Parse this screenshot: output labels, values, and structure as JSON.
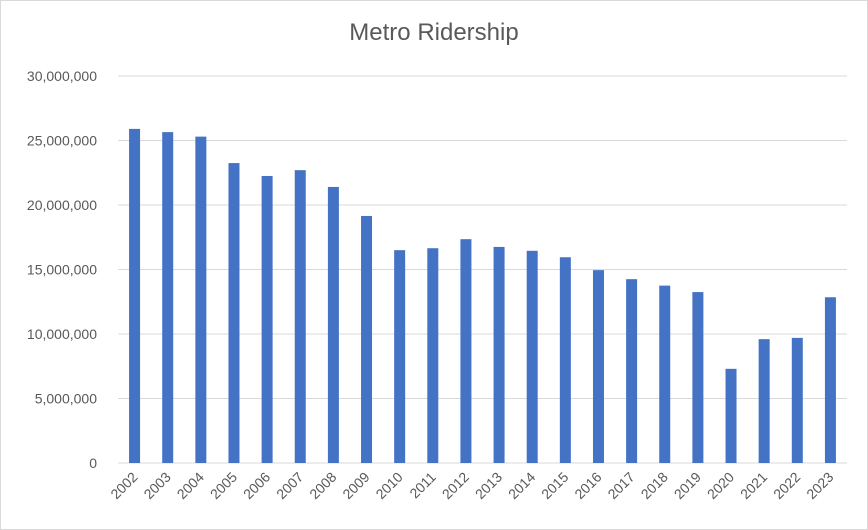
{
  "chart_data": {
    "type": "bar",
    "title": "Metro Ridership",
    "xlabel": "",
    "ylabel": "",
    "ylim": [
      0,
      30000000
    ],
    "yticks": [
      0,
      5000000,
      10000000,
      15000000,
      20000000,
      25000000,
      30000000
    ],
    "ytick_labels": [
      "0",
      "5,000,000",
      "10,000,000",
      "15,000,000",
      "20,000,000",
      "25,000,000",
      "30,000,000"
    ],
    "grid": true,
    "legend": "none",
    "bar_color": "#4472c4",
    "categories": [
      "2002",
      "2003",
      "2004",
      "2005",
      "2006",
      "2007",
      "2008",
      "2009",
      "2010",
      "2011",
      "2012",
      "2013",
      "2014",
      "2015",
      "2016",
      "2017",
      "2018",
      "2019",
      "2020",
      "2021",
      "2022",
      "2023"
    ],
    "values": [
      25900000,
      25650000,
      25300000,
      23250000,
      22250000,
      22700000,
      21400000,
      19150000,
      16500000,
      16650000,
      17350000,
      16750000,
      16450000,
      15950000,
      14950000,
      14250000,
      13750000,
      13250000,
      7300000,
      9600000,
      9700000,
      12850000
    ]
  }
}
